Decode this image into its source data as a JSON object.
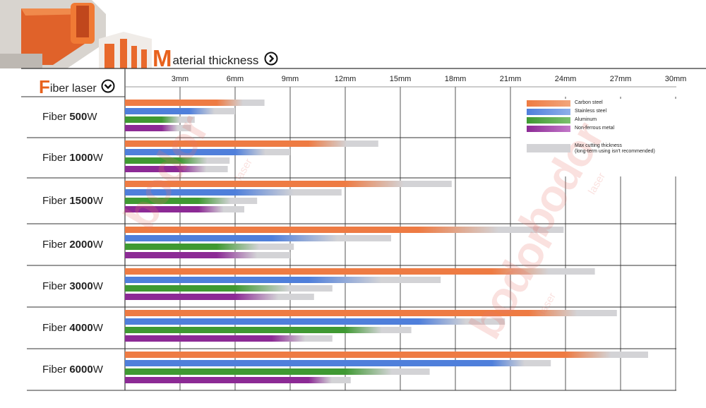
{
  "header": {
    "title_initial": "M",
    "title_rest": "aterial thickness",
    "arrow_icon": "circle-chevron-right-icon",
    "row_header_initial": "F",
    "row_header_rest": "iber laser",
    "row_header_icon": "circle-chevron-down-icon",
    "accent_color": "#e8621d"
  },
  "watermark": {
    "brand": "bodor",
    "sub": "laser"
  },
  "legend": {
    "items": [
      {
        "label": "Carbon steel",
        "color": "#ee7b43"
      },
      {
        "label": "Stainless steel",
        "color": "#4f7fdb"
      },
      {
        "label": "Aluminum",
        "color": "#3f9932"
      },
      {
        "label": "Non-ferrous metal",
        "color": "#8c2a95"
      }
    ],
    "max_label_1": "Max cutting thickness",
    "max_label_2": "(long-term using isn't recommended)",
    "max_color": "#d3d3d6"
  },
  "chart_data": {
    "type": "bar",
    "orientation": "horizontal",
    "xlim": [
      0,
      30
    ],
    "x_ticks": [
      "3mm",
      "6mm",
      "9mm",
      "12mm",
      "15mm",
      "18mm",
      "21mm",
      "24mm",
      "27mm",
      "30mm"
    ],
    "series_names": [
      "Carbon steel",
      "Stainless steel",
      "Aluminum",
      "Non-ferrous metal"
    ],
    "note": "Each bar: solid part = recommended thickness, fading gray part up to max cutting thickness",
    "rows": [
      {
        "prefix": "Fiber ",
        "power": "500",
        "unit": "W",
        "bars": [
          {
            "rec": 5,
            "max": 7.6
          },
          {
            "rec": 3.5,
            "max": 6
          },
          {
            "rec": 2,
            "max": 3.8
          },
          {
            "rec": 2,
            "max": 3.6
          }
        ]
      },
      {
        "prefix": "Fiber ",
        "power": "1000",
        "unit": "W",
        "bars": [
          {
            "rec": 10,
            "max": 13.8
          },
          {
            "rec": 6,
            "max": 9
          },
          {
            "rec": 3,
            "max": 5.7
          },
          {
            "rec": 3,
            "max": 5.6
          }
        ]
      },
      {
        "prefix": "Fiber ",
        "power": "1500",
        "unit": "W",
        "bars": [
          {
            "rec": 12,
            "max": 17.8
          },
          {
            "rec": 6,
            "max": 11.8
          },
          {
            "rec": 4,
            "max": 7.2
          },
          {
            "rec": 4,
            "max": 6.5
          }
        ]
      },
      {
        "prefix": "Fiber ",
        "power": "2000",
        "unit": "W",
        "bars": [
          {
            "rec": 16,
            "max": 23.9
          },
          {
            "rec": 8,
            "max": 14.5
          },
          {
            "rec": 5,
            "max": 9.2
          },
          {
            "rec": 5,
            "max": 9
          }
        ]
      },
      {
        "prefix": "Fiber ",
        "power": "3000",
        "unit": "W",
        "bars": [
          {
            "rec": 20,
            "max": 25.6
          },
          {
            "rec": 10,
            "max": 17.2
          },
          {
            "rec": 6,
            "max": 11.3
          },
          {
            "rec": 6,
            "max": 10.3
          }
        ]
      },
      {
        "prefix": "Fiber ",
        "power": "4000",
        "unit": "W",
        "bars": [
          {
            "rec": 22,
            "max": 26.8
          },
          {
            "rec": 16,
            "max": 20.7
          },
          {
            "rec": 12,
            "max": 15.6
          },
          {
            "rec": 8,
            "max": 11.3
          }
        ]
      },
      {
        "prefix": "Fiber ",
        "power": "6000",
        "unit": "W",
        "bars": [
          {
            "rec": 24,
            "max": 28.5
          },
          {
            "rec": 20,
            "max": 23.2
          },
          {
            "rec": 12,
            "max": 16.6
          },
          {
            "rec": 10,
            "max": 12.3
          }
        ]
      }
    ]
  }
}
